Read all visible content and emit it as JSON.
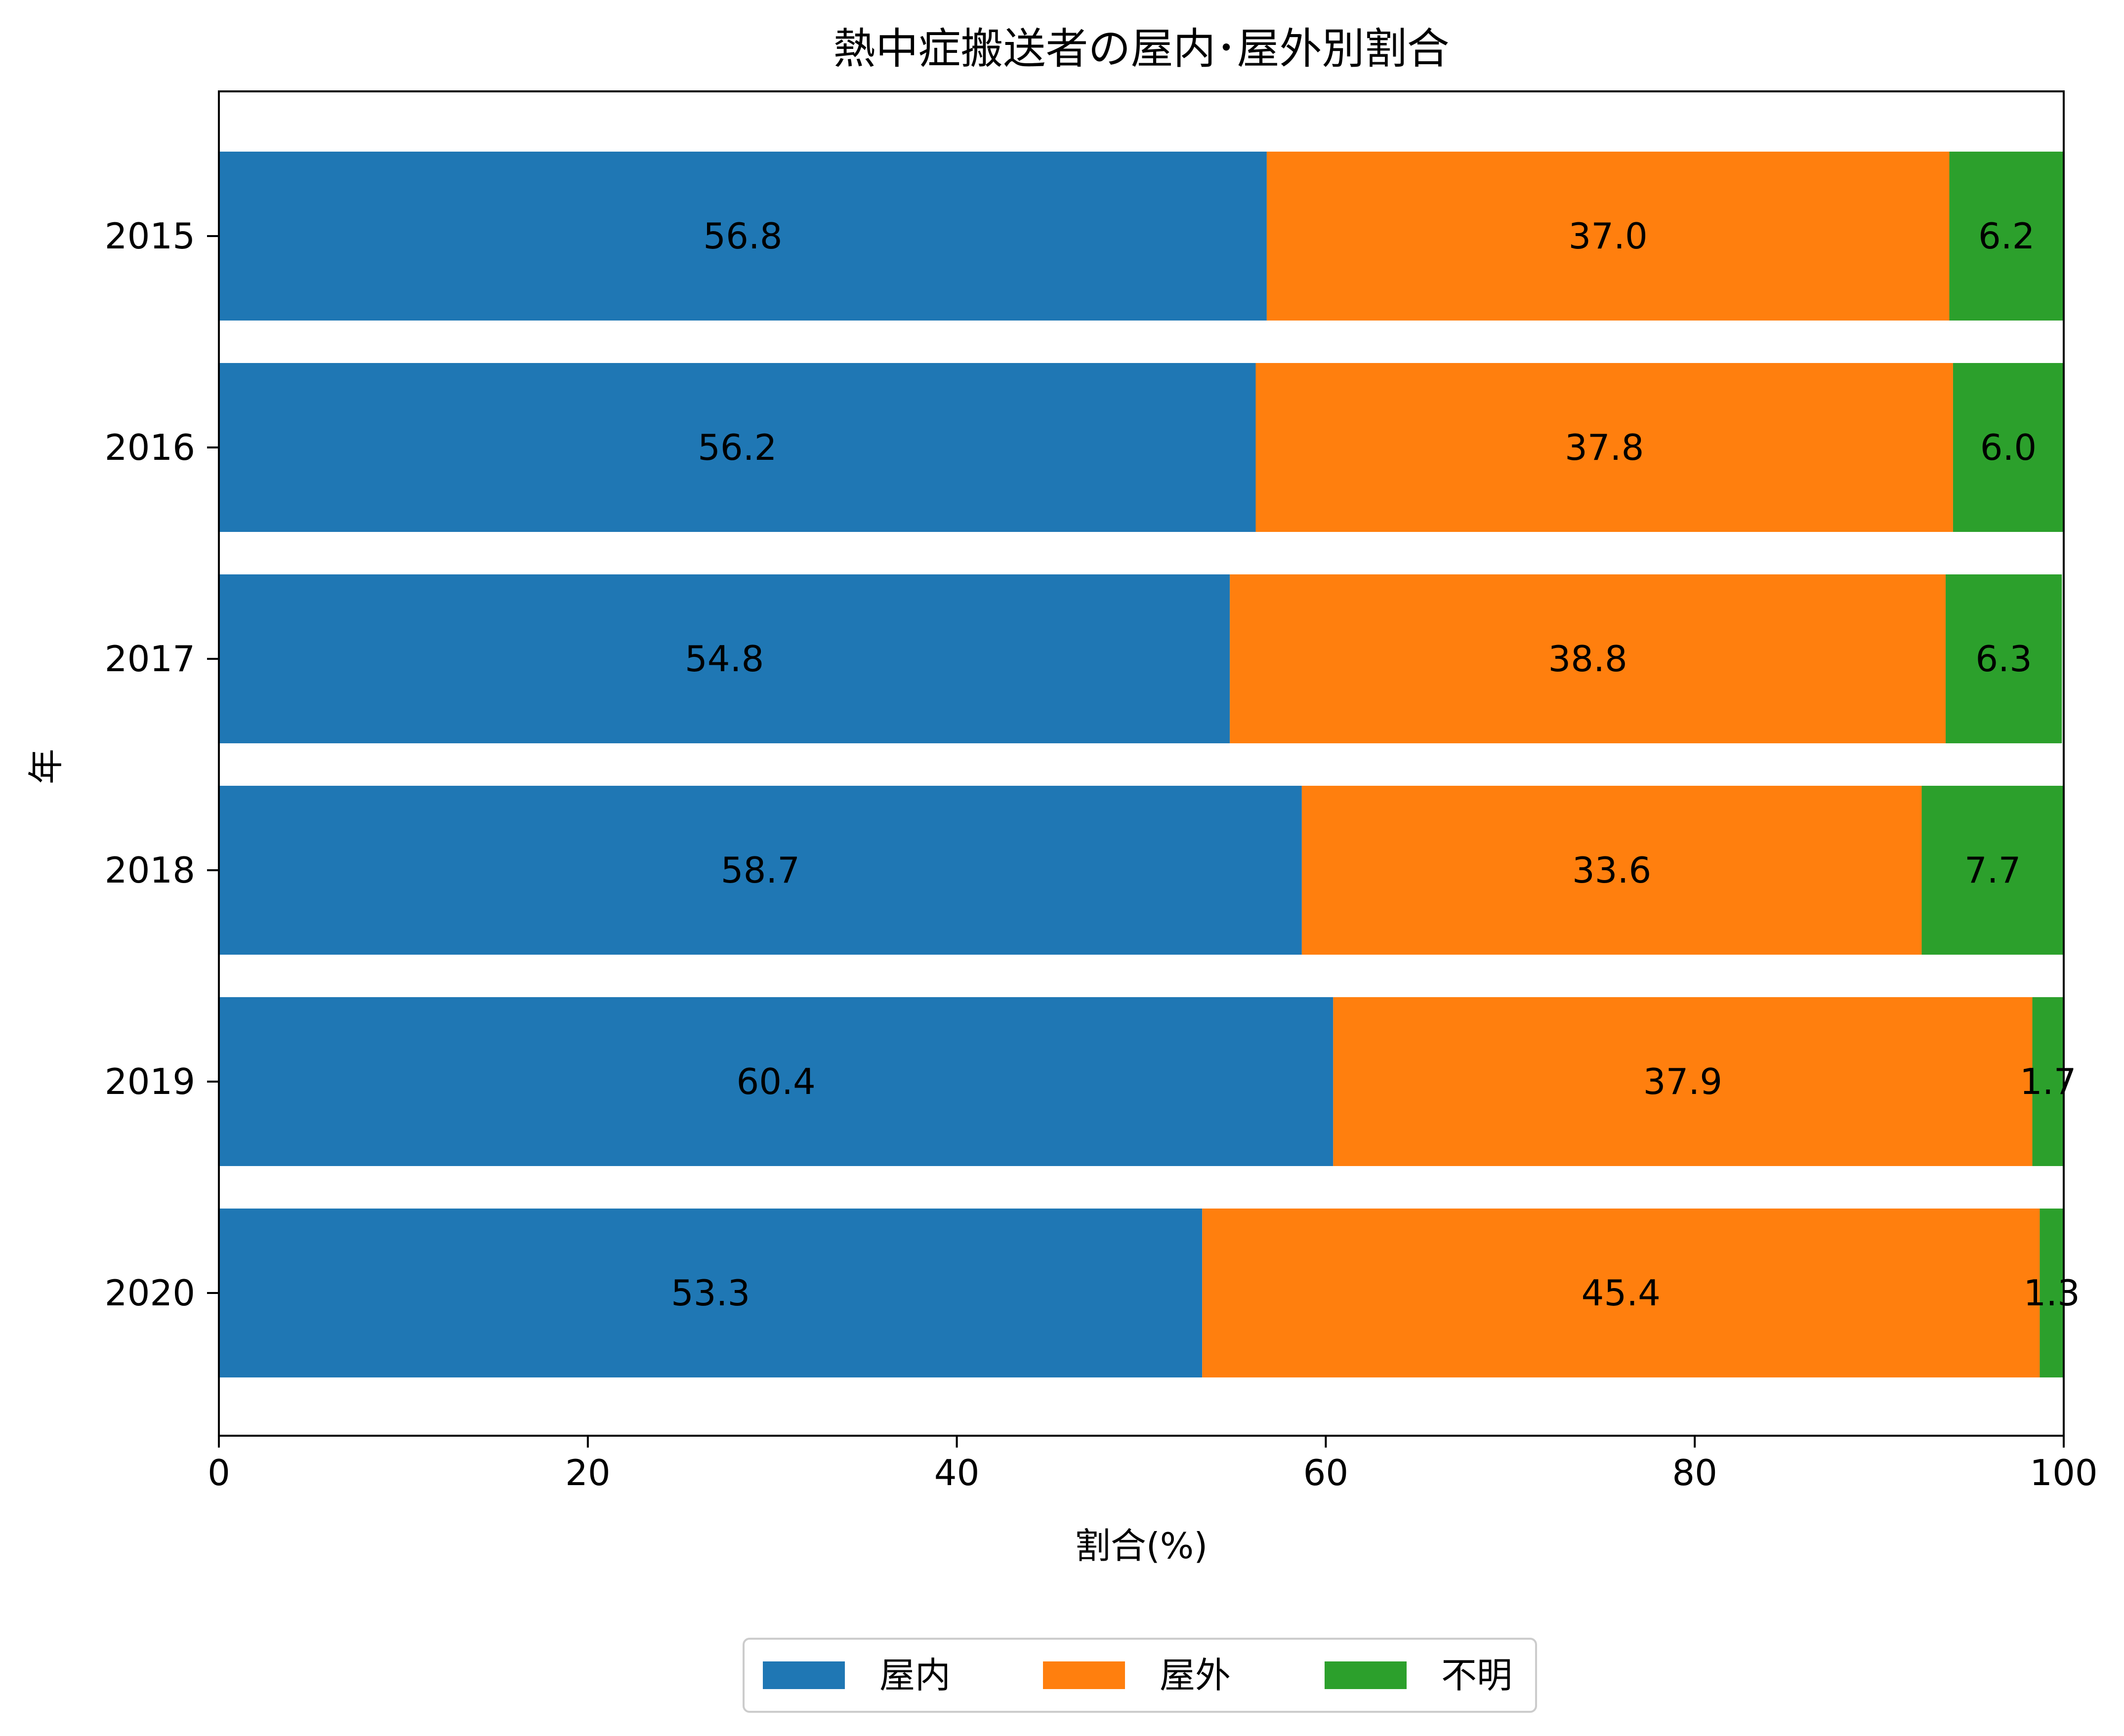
{
  "chart_data": {
    "type": "bar",
    "orientation": "horizontal",
    "stacked": true,
    "title": "熱中症搬送者の屋内･屋外別割合",
    "xlabel": "割合(%)",
    "ylabel": "年",
    "xlim": [
      0,
      100
    ],
    "xticks": [
      "0",
      "20",
      "40",
      "60",
      "80",
      "100"
    ],
    "categories": [
      "2015",
      "2016",
      "2017",
      "2018",
      "2019",
      "2020"
    ],
    "series": [
      {
        "name": "屋内",
        "color": "#1f77b4",
        "values": [
          56.8,
          56.2,
          54.8,
          58.7,
          60.4,
          53.3
        ],
        "labels": [
          "56.8",
          "56.2",
          "54.8",
          "58.7",
          "60.4",
          "53.3"
        ]
      },
      {
        "name": "屋外",
        "color": "#ff7f0e",
        "values": [
          37.0,
          37.8,
          38.8,
          33.6,
          37.9,
          45.4
        ],
        "labels": [
          "37.0",
          "37.8",
          "38.8",
          "33.6",
          "37.9",
          "45.4"
        ]
      },
      {
        "name": "不明",
        "color": "#2ca02c",
        "values": [
          6.2,
          6.0,
          6.3,
          7.7,
          1.7,
          1.3
        ],
        "labels": [
          "6.2",
          "6.0",
          "6.3",
          "7.7",
          "1.7",
          "1.3"
        ]
      }
    ],
    "grid": false,
    "legend_position": "bottom-center"
  }
}
